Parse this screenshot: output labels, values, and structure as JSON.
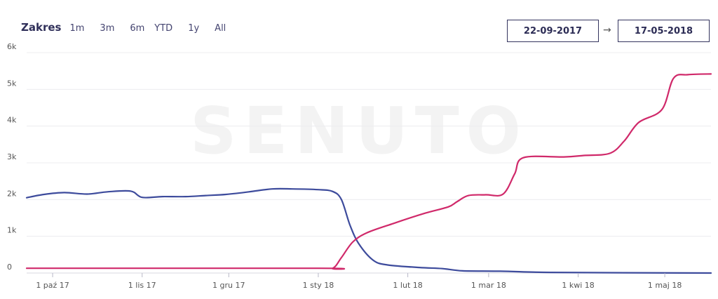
{
  "range": {
    "title": "Zakres",
    "buttons": [
      "1m",
      "3m",
      "6m",
      "YTD",
      "1y",
      "All"
    ]
  },
  "date_from": "22-09-2017",
  "date_to": "17-05-2018",
  "date_arrow": "→",
  "watermark": "SENUTO",
  "chart_data": {
    "type": "line",
    "ylim": [
      0,
      6000
    ],
    "y_ticks": [
      {
        "value": 0,
        "label": "0"
      },
      {
        "value": 1000,
        "label": "1k"
      },
      {
        "value": 2000,
        "label": "2k"
      },
      {
        "value": 3000,
        "label": "3k"
      },
      {
        "value": 4000,
        "label": "4k"
      },
      {
        "value": 5000,
        "label": "5k"
      },
      {
        "value": 6000,
        "label": "6k"
      }
    ],
    "xlim": [
      "2017-09-22",
      "2018-05-17"
    ],
    "x_ticks": [
      {
        "date": "2017-10-01",
        "label": "1 paź 17"
      },
      {
        "date": "2017-11-01",
        "label": "1 lis 17"
      },
      {
        "date": "2017-12-01",
        "label": "1 gru 17"
      },
      {
        "date": "2018-01-01",
        "label": "1 sty 18"
      },
      {
        "date": "2018-02-01",
        "label": "1 lut 18"
      },
      {
        "date": "2018-03-01",
        "label": "1 mar 18"
      },
      {
        "date": "2018-04-01",
        "label": "1 kwi 18"
      },
      {
        "date": "2018-05-01",
        "label": "1 maj 18"
      }
    ],
    "grid": true,
    "series": [
      {
        "color": "#3d4b9c",
        "points": [
          [
            "2017-09-22",
            2050
          ],
          [
            "2017-09-28",
            2140
          ],
          [
            "2017-10-05",
            2190
          ],
          [
            "2017-10-13",
            2150
          ],
          [
            "2017-10-20",
            2210
          ],
          [
            "2017-10-28",
            2230
          ],
          [
            "2017-11-01",
            2060
          ],
          [
            "2017-11-08",
            2080
          ],
          [
            "2017-11-16",
            2080
          ],
          [
            "2017-11-23",
            2110
          ],
          [
            "2017-11-30",
            2140
          ],
          [
            "2017-12-08",
            2210
          ],
          [
            "2017-12-16",
            2290
          ],
          [
            "2017-12-23",
            2290
          ],
          [
            "2018-01-01",
            2270
          ],
          [
            "2018-01-06",
            2220
          ],
          [
            "2018-01-09",
            2000
          ],
          [
            "2018-01-12",
            1300
          ],
          [
            "2018-01-15",
            800
          ],
          [
            "2018-01-20",
            350
          ],
          [
            "2018-01-25",
            220
          ],
          [
            "2018-02-05",
            150
          ],
          [
            "2018-02-13",
            120
          ],
          [
            "2018-02-20",
            60
          ],
          [
            "2018-03-05",
            50
          ],
          [
            "2018-03-20",
            20
          ],
          [
            "2018-04-10",
            10
          ],
          [
            "2018-05-17",
            0
          ]
        ]
      },
      {
        "color": "#d0296a",
        "points": [
          [
            "2017-09-22",
            130
          ],
          [
            "2018-01-01",
            130
          ],
          [
            "2018-01-06",
            130
          ],
          [
            "2018-01-09",
            420
          ],
          [
            "2018-01-13",
            850
          ],
          [
            "2018-01-18",
            1100
          ],
          [
            "2018-01-27",
            1350
          ],
          [
            "2018-02-07",
            1630
          ],
          [
            "2018-02-15",
            1800
          ],
          [
            "2018-02-18",
            1940
          ],
          [
            "2018-02-22",
            2110
          ],
          [
            "2018-02-28",
            2130
          ],
          [
            "2018-03-06",
            2150
          ],
          [
            "2018-03-10",
            2700
          ],
          [
            "2018-03-13",
            3140
          ],
          [
            "2018-03-27",
            3160
          ],
          [
            "2018-04-03",
            3200
          ],
          [
            "2018-04-12",
            3260
          ],
          [
            "2018-04-17",
            3600
          ],
          [
            "2018-04-22",
            4100
          ],
          [
            "2018-04-30",
            4450
          ],
          [
            "2018-05-04",
            5300
          ],
          [
            "2018-05-09",
            5400
          ],
          [
            "2018-05-17",
            5420
          ]
        ]
      }
    ]
  }
}
